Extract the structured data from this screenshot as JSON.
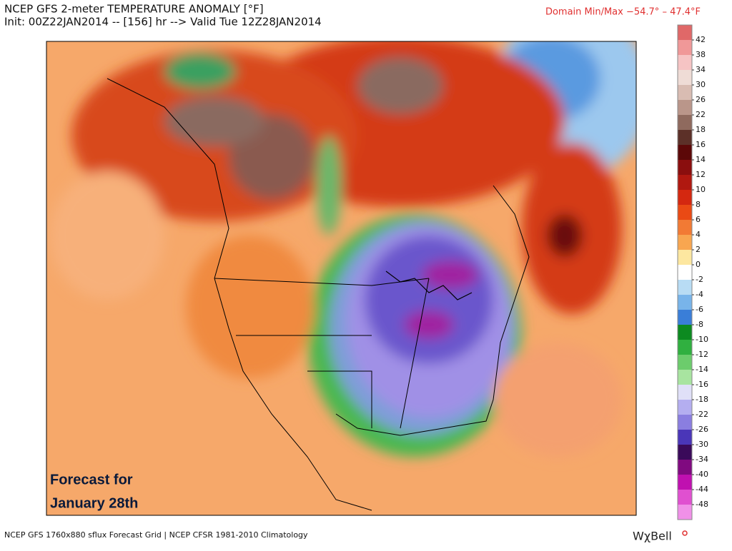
{
  "header": {
    "title": "NCEP GFS 2-meter TEMPERATURE ANOMALY [°F]",
    "init": "Init: 00Z22JAN2014 -- [156] hr --> Valid Tue 12Z28JAN2014",
    "domain_minmax": "Domain Min/Max −54.7° –  47.4°F"
  },
  "map": {
    "annotation_line1": "Forecast for",
    "annotation_line2": "January 28th"
  },
  "colorbar": {
    "labels": [
      "42",
      "38",
      "34",
      "30",
      "26",
      "22",
      "18",
      "16",
      "14",
      "12",
      "10",
      "8",
      "6",
      "4",
      "2",
      "0",
      "-2",
      "-4",
      "-6",
      "-8",
      "-10",
      "-12",
      "-14",
      "-16",
      "-18",
      "-22",
      "-26",
      "-30",
      "-34",
      "-40",
      "-44",
      "-48"
    ],
    "colors": [
      "#e06868",
      "#f09898",
      "#f6c4c4",
      "#efdcd6",
      "#d9bcb2",
      "#ba968a",
      "#8f6a5e",
      "#5c3028",
      "#5c0808",
      "#8a0e0e",
      "#b01810",
      "#d42810",
      "#ea4a14",
      "#f27a34",
      "#f8a650",
      "#fde7a0",
      "#ffffff",
      "#b8dcf4",
      "#78b4ea",
      "#3a7ed8",
      "#0c8a20",
      "#30b040",
      "#6ccc6c",
      "#a8e4a0",
      "#e0e0f8",
      "#b4aef0",
      "#8a7ee0",
      "#4a36b8",
      "#3a0a5a",
      "#800a80",
      "#c010b0",
      "#e050d0",
      "#f090e8"
    ]
  },
  "footer": {
    "source": "NCEP GFS 1760x880 sflux Forecast Grid | NCEP CFSR 1981-2010 Climatology",
    "brand": "WχBell"
  }
}
